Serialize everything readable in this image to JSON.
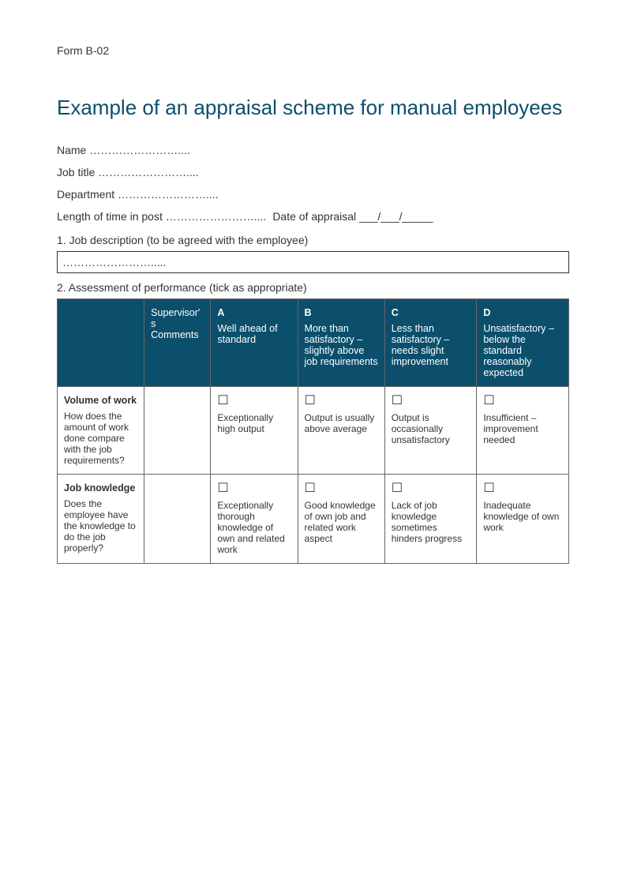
{
  "form_id": "Form B-02",
  "title": "Example of an appraisal scheme for manual employees",
  "fields": {
    "name": "Name ……………………....",
    "job_title": "Job title ……………………....",
    "department": "Department ……………………....",
    "length": "Length of time in post ……………………....",
    "date": "Date of appraisal ___/___/_____"
  },
  "section1": {
    "label": "1.  Job description (to be agreed with the employee)",
    "box": "……………………....."
  },
  "section2": {
    "label": "2.  Assessment of performance (tick as appropriate)"
  },
  "table": {
    "header_bg": "#0b4f6c",
    "header_fg": "#ffffff",
    "border_color": "#666666",
    "columns": [
      {
        "letter": "",
        "text": ""
      },
      {
        "letter": "",
        "text": "Supervisor's Comments"
      },
      {
        "letter": "A",
        "text": "Well ahead of standard"
      },
      {
        "letter": "B",
        "text": "More than satisfactory – slightly above job requirements"
      },
      {
        "letter": "C",
        "text": "Less than satisfactory – needs slight improvement"
      },
      {
        "letter": "D",
        "text": "Unsatisfactory – below the standard reasonably expected"
      }
    ],
    "rows": [
      {
        "title": "Volume of work",
        "desc": "How does the amount of work done compare with the job requirements?",
        "comments": "",
        "a": "Exceptionally high output",
        "b": "Output is usually above average",
        "c": "Output is occasionally unsatisfactory",
        "d": "Insufficient – improvement needed"
      },
      {
        "title": "Job knowledge",
        "desc": "Does the employee have the knowledge to do the job properly?",
        "comments": "",
        "a": "Exceptionally thorough knowledge of own and related work",
        "b": "Good knowledge of own job and related work aspect",
        "c": "Lack of job knowledge sometimes hinders progress",
        "d": "Inadequate knowledge of own work"
      }
    ]
  },
  "checkbox_glyph": "☐"
}
